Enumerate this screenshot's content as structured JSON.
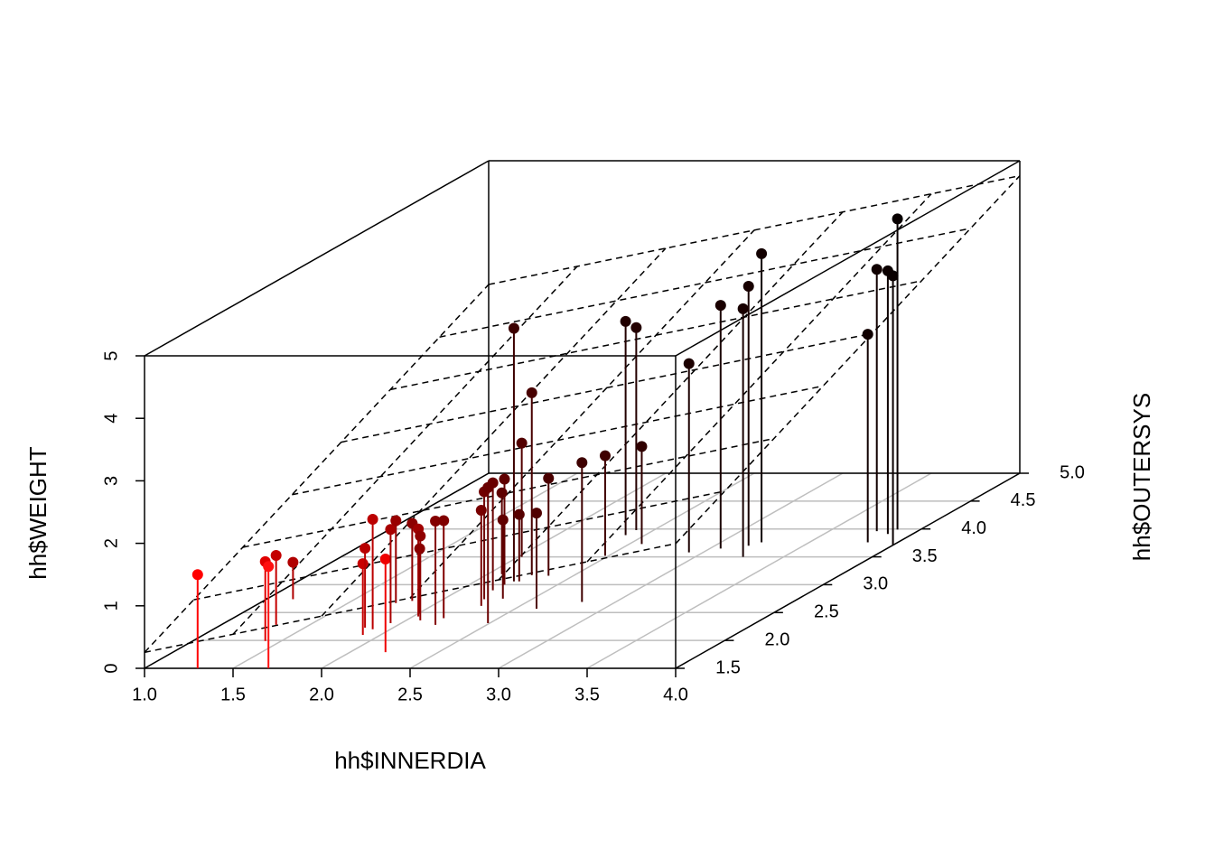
{
  "chart_data": {
    "type": "scatter3d",
    "x_label": "hh$INNERDIA",
    "y_label": "hh$OUTERSYS",
    "z_label": "hh$WEIGHT",
    "xlim": [
      1,
      4
    ],
    "ylim": [
      1.5,
      5
    ],
    "zlim": [
      0,
      5
    ],
    "xticks": [
      {
        "value": 1,
        "label": "1.0"
      },
      {
        "value": 1.5,
        "label": "1.5"
      },
      {
        "value": 2,
        "label": "2.0"
      },
      {
        "value": 2.5,
        "label": "2.5"
      },
      {
        "value": 3,
        "label": "3.0"
      },
      {
        "value": 3.5,
        "label": "3.5"
      },
      {
        "value": 4,
        "label": "4.0"
      }
    ],
    "yticks": [
      {
        "value": 1.5,
        "label": "1.5"
      },
      {
        "value": 2,
        "label": "2.0"
      },
      {
        "value": 2.5,
        "label": "2.5"
      },
      {
        "value": 3,
        "label": "3.0"
      },
      {
        "value": 3.5,
        "label": "3.5"
      },
      {
        "value": 4,
        "label": "4.0"
      },
      {
        "value": 4.5,
        "label": "4.5"
      },
      {
        "value": 5,
        "label": "5.0"
      }
    ],
    "zticks": [
      0,
      1,
      2,
      3,
      4,
      5
    ],
    "grid": true,
    "plane": {
      "intercept": -1.51,
      "x_slope": 0.58,
      "y_slope": 0.79
    },
    "x": [
      1.3,
      1.41,
      1.7,
      1.31,
      1.15,
      1.9,
      1.84,
      1.9,
      2.2,
      1.94,
      1.77,
      1.84,
      2.03,
      2.01,
      2.08,
      2.21,
      2.19,
      2.28,
      2.23,
      2.49,
      2.19,
      2.08,
      2.2,
      2.33,
      2.22,
      2.25,
      2.02,
      2.26,
      2.62,
      2.36,
      2.81,
      2.48,
      2.39,
      2.4,
      2.57,
      2.92,
      3.06,
      3.27,
      3.19,
      3.23,
      3.83,
      3.77,
      3.86,
      4.0,
      3.87
    ],
    "y": [
      1.5,
      1.99,
      1.5,
      2.28,
      2.74,
      2.1,
      2.23,
      2.2,
      1.79,
      2.31,
      2.67,
      2.71,
      2.43,
      2.48,
      2.36,
      2.28,
      2.4,
      2.62,
      2.74,
      2.31,
      2.9,
      3.19,
      3.0,
      2.75,
      3.06,
      3.06,
      3.5,
      3.17,
      2.57,
      3.16,
      2.69,
      3.52,
      3.89,
      3.98,
      3.73,
      3.58,
      3.65,
      3.5,
      3.7,
      3.76,
      3.76,
      3.96,
      3.91,
      3.71,
      3.99
    ],
    "z": [
      1.5,
      1.27,
      1.63,
      1.11,
      0.59,
      1.14,
      1.27,
      1.76,
      1.49,
      1.5,
      1.32,
      1.24,
      1.4,
      1.04,
      1.35,
      1.66,
      1.56,
      1.53,
      1.72,
      2.17,
      1.72,
      1.3,
      1.69,
      1.26,
      4.05,
      1.07,
      1.82,
      2.92,
      1.53,
      1.56,
      2.23,
      1.6,
      3.42,
      3.24,
      1.56,
      3.02,
      3.89,
      3.97,
      4.15,
      4.62,
      3.33,
      4.19,
      4.21,
      4.31,
      4.97
    ],
    "colors": [
      "#ff0000",
      "#e00000",
      "#ff1010",
      "#c40000",
      "#b00000",
      "#c80000",
      "#b80000",
      "#bb0000",
      "#ee0000",
      "#a80000",
      "#980000",
      "#8c0000",
      "#a00000",
      "#880000",
      "#900000",
      "#840000",
      "#800000",
      "#780000",
      "#700000",
      "#6a0000",
      "#680000",
      "#5e0000",
      "#600000",
      "#600000",
      "#3c0000",
      "#580000",
      "#520000",
      "#480000",
      "#500000",
      "#4a0000",
      "#3e0000",
      "#400000",
      "#220000",
      "#240000",
      "#300000",
      "#1c0000",
      "#1a0000",
      "#180000",
      "#180000",
      "#120000",
      "#100000",
      "#100000",
      "#0c0000",
      "#0a0000",
      "#080000"
    ]
  }
}
